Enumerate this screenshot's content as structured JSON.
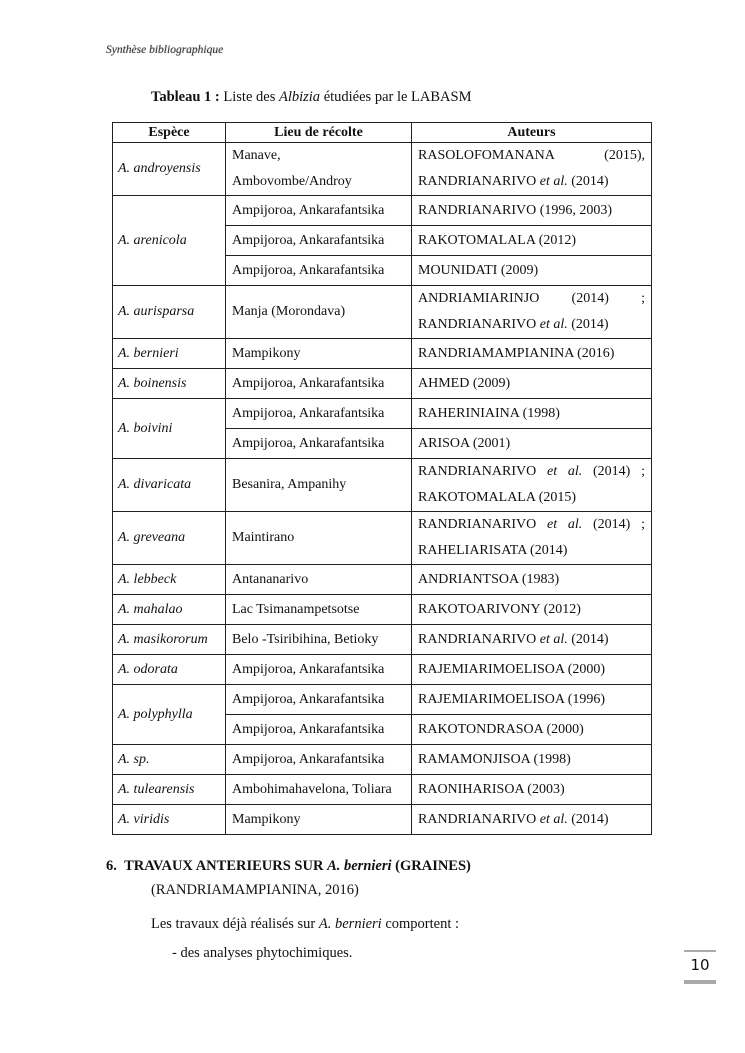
{
  "header": "Synthèse bibliographique",
  "caption": {
    "label": "Tableau 1 :",
    "pre": " Liste des ",
    "genus": "Albizia",
    "post": " étudiées par le LABASM"
  },
  "table": {
    "columns": [
      "Espèce",
      "Lieu de récolte",
      "Auteurs"
    ],
    "rows": [
      {
        "species": "A. androyensis",
        "entries": [
          {
            "lieu": "Manave, Ambovombe/Androy",
            "auteurs": "RASOLOFOMANANA (2015), RANDRIANARIVO et al. (2014)"
          }
        ]
      },
      {
        "species": "A. arenicola",
        "entries": [
          {
            "lieu": "Ampijoroa, Ankarafantsika",
            "auteurs": "RANDRIANARIVO (1996, 2003)"
          },
          {
            "lieu": "Ampijoroa, Ankarafantsika",
            "auteurs": "RAKOTOMALALA (2012)"
          },
          {
            "lieu": "Ampijoroa, Ankarafantsika",
            "auteurs": "MOUNIDATI (2009)"
          }
        ]
      },
      {
        "species": "A. aurisparsa",
        "entries": [
          {
            "lieu": "Manja (Morondava)",
            "auteurs": "ANDRIAMIARINJO (2014) ; RANDRIANARIVO et al. (2014)"
          }
        ]
      },
      {
        "species": "A. bernieri",
        "entries": [
          {
            "lieu": "Mampikony",
            "auteurs": "RANDRIAMAMPIANINA (2016)"
          }
        ]
      },
      {
        "species": "A. boinensis",
        "entries": [
          {
            "lieu": "Ampijoroa, Ankarafantsika",
            "auteurs": "AHMED (2009)"
          }
        ]
      },
      {
        "species": "A. boivini",
        "entries": [
          {
            "lieu": "Ampijoroa, Ankarafantsika",
            "auteurs": "RAHERINIAINA (1998)"
          },
          {
            "lieu": "Ampijoroa, Ankarafantsika",
            "auteurs": "ARISOA (2001)"
          }
        ]
      },
      {
        "species": "A. divaricata",
        "entries": [
          {
            "lieu": "Besanira, Ampanihy",
            "auteurs": "RANDRIANARIVO et al. (2014) ; RAKOTOMALALA (2015)"
          }
        ]
      },
      {
        "species": "A. greveana",
        "entries": [
          {
            "lieu": "Maintirano",
            "auteurs": "RANDRIANARIVO et al. (2014) ; RAHELIARISATA (2014)"
          }
        ]
      },
      {
        "species": "A. lebbeck",
        "entries": [
          {
            "lieu": "Antananarivo",
            "auteurs": "ANDRIANTSOA (1983)"
          }
        ]
      },
      {
        "species": "A. mahalao",
        "entries": [
          {
            "lieu": "Lac Tsimanampetsotse",
            "auteurs": "RAKOTOARIVONY (2012)"
          }
        ]
      },
      {
        "species": "A. masikororum",
        "entries": [
          {
            "lieu": "Belo -Tsiribihina, Betioky",
            "auteurs": "RANDRIANARIVO et al. (2014)"
          }
        ]
      },
      {
        "species": "A. odorata",
        "entries": [
          {
            "lieu": "Ampijoroa, Ankarafantsika",
            "auteurs": "RAJEMIARIMOELISOA (2000)"
          }
        ]
      },
      {
        "species": "A. polyphylla",
        "entries": [
          {
            "lieu": "Ampijoroa, Ankarafantsika",
            "auteurs": "RAJEMIARIMOELISOA (1996)"
          },
          {
            "lieu": "Ampijoroa, Ankarafantsika",
            "auteurs": "RAKOTONDRASOA (2000)"
          }
        ]
      },
      {
        "species": "A. sp.",
        "entries": [
          {
            "lieu": "Ampijoroa, Ankarafantsika",
            "auteurs": "RAMAMONJISOA (1998)"
          }
        ]
      },
      {
        "species": "A. tulearensis",
        "entries": [
          {
            "lieu": "Ambohimahavelona, Toliara",
            "auteurs": "RAONIHARISOA (2003)"
          }
        ]
      },
      {
        "species": "A. viridis",
        "entries": [
          {
            "lieu": "Mampikony",
            "auteurs": "RANDRIANARIVO et al. (2014)"
          }
        ]
      }
    ]
  },
  "section": {
    "number": "6.",
    "pre": "TRAVAUX ANTERIEURS SUR ",
    "species": "A. bernieri",
    "post": " (GRAINES)"
  },
  "reference": "(RANDRIAMAMPIANINA, 2016)",
  "paragraph": {
    "pre": "Les travaux déjà réalisés sur ",
    "species": "A. bernieri",
    "post": " comportent :"
  },
  "bullet": "-  des analyses phytochimiques.",
  "page_number": "10"
}
